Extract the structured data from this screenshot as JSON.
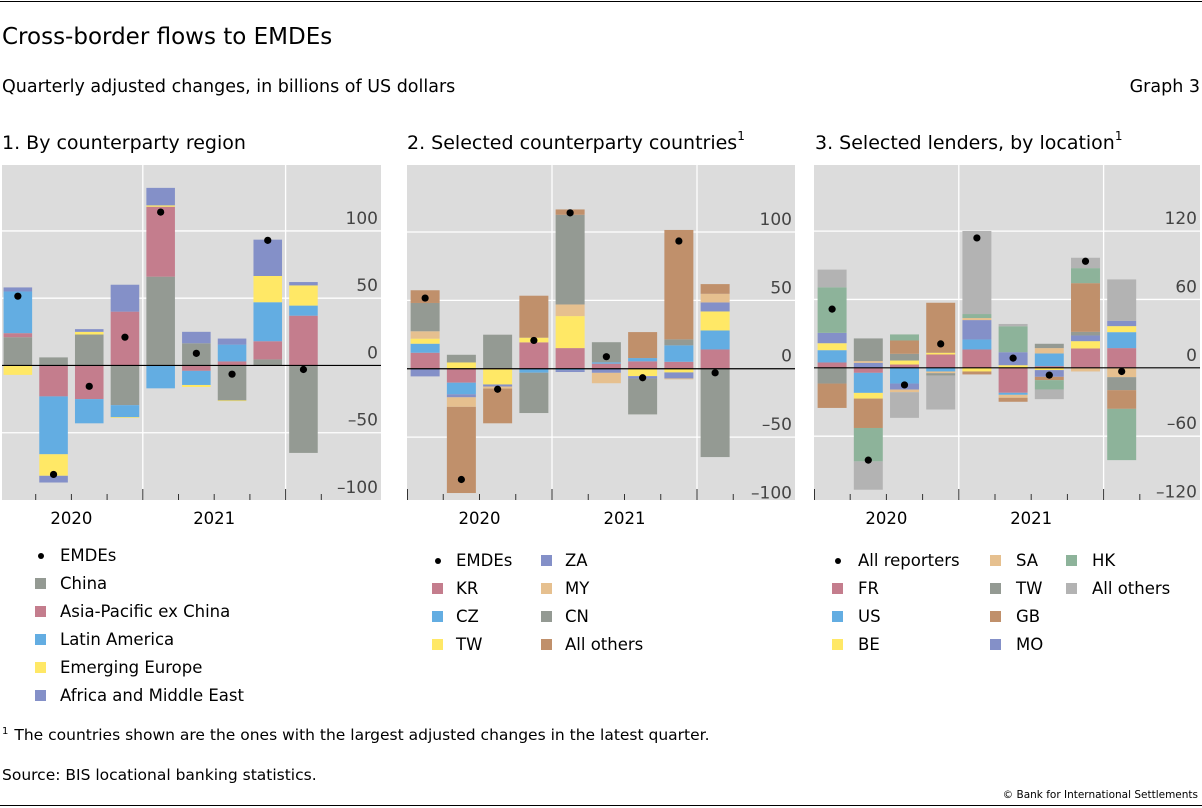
{
  "header": {
    "title": "Cross-border flows to EMDEs",
    "subtitle": "Quarterly adjusted changes, in billions of US dollars",
    "graph_label": "Graph 3"
  },
  "footer": {
    "footnote_marker": "1",
    "footnote": "The countries shown are the ones with the largest adjusted changes in the latest quarter.",
    "source": "Source: BIS locational banking statistics.",
    "copyright": "© Bank for International Settlements"
  },
  "colors": {
    "plot_background": "#dcdcdc",
    "gridline": "#ffffff",
    "zero_line": "#000000",
    "dot": "#000000"
  },
  "chart_data": [
    {
      "type": "bar",
      "stacked": true,
      "title": "1. By counterparty region",
      "title_sup": "",
      "categories": [
        "2020Q1",
        "2020Q2",
        "2020Q3",
        "2020Q4",
        "2021Q1",
        "2021Q2",
        "2021Q3",
        "2021Q4",
        "2022Q1"
      ],
      "x_tick_labels": [
        "2020",
        "2021"
      ],
      "ylim": [
        -100,
        149
      ],
      "yticks": [
        -100,
        -50,
        0,
        50,
        100
      ],
      "ytick_labels": [
        "–100",
        "–50",
        "0",
        "50",
        "100"
      ],
      "grid": true,
      "legend_position": "bottom",
      "dots": {
        "name": "EMDEs",
        "values": [
          51.5,
          -81,
          -15.5,
          21,
          114,
          9,
          -6.5,
          93,
          -3
        ]
      },
      "series": [
        {
          "name": "China",
          "color": "#949a93",
          "values": [
            21,
            6,
            23,
            -29.5,
            66,
            16.5,
            -26,
            4.5,
            -65
          ]
        },
        {
          "name": "Asia-Pacific ex China",
          "color": "#c47d8d",
          "values": [
            3,
            -23,
            -25,
            40,
            52,
            -4,
            3,
            13.5,
            37
          ]
        },
        {
          "name": "Latin America",
          "color": "#63ade2",
          "values": [
            31,
            -43,
            -18,
            -9,
            -17,
            -10.5,
            12.5,
            29,
            7.5
          ]
        },
        {
          "name": "Emerging Europe",
          "color": "#ffe866",
          "values": [
            -7,
            -16,
            2,
            -0.5,
            1,
            -1.5,
            -0.5,
            19.5,
            15
          ]
        },
        {
          "name": "Africa and Middle East",
          "color": "#8490c8",
          "values": [
            3,
            -5,
            2,
            20,
            13,
            8.5,
            4.5,
            27,
            2.5
          ]
        }
      ]
    },
    {
      "type": "bar",
      "stacked": true,
      "title": "2. Selected counterparty countries",
      "title_sup": "1",
      "categories": [
        "2020Q1",
        "2020Q2",
        "2020Q3",
        "2020Q4",
        "2021Q1",
        "2021Q2",
        "2021Q3",
        "2021Q4",
        "2022Q1"
      ],
      "x_tick_labels": [
        "2020",
        "2021"
      ],
      "ylim": [
        -96,
        149
      ],
      "yticks": [
        -100,
        -50,
        0,
        50,
        100
      ],
      "ytick_labels": [
        "–100",
        "–50",
        "0",
        "50",
        "100"
      ],
      "grid": true,
      "legend_position": "bottom",
      "dots": {
        "name": "EMDEs",
        "values": [
          51.7,
          -81,
          -15,
          20.7,
          114,
          8.8,
          -6.6,
          93.4,
          -3
        ]
      },
      "series": [
        {
          "name": "KR",
          "color": "#c47d8d",
          "values": [
            11.7,
            -10.2,
            0.5,
            19.3,
            15.1,
            3.7,
            5.4,
            5.1,
            14.1
          ]
        },
        {
          "name": "CZ",
          "color": "#63ade2",
          "values": [
            6.6,
            -8.5,
            0,
            -2.9,
            -1,
            1,
            2.4,
            12,
            13.9
          ]
        },
        {
          "name": "TW",
          "color": "#ffe866",
          "values": [
            3.7,
            4.6,
            -11.5,
            3.4,
            23.4,
            0,
            -5.4,
            -2.7,
            13.9
          ]
        },
        {
          "name": "ZA",
          "color": "#8490c8",
          "values": [
            -5.6,
            -2.2,
            -1.5,
            0,
            -1.4,
            -3,
            -1.7,
            -4.4,
            6.6
          ]
        },
        {
          "name": "MY",
          "color": "#e6c08f",
          "values": [
            5.4,
            -7,
            -1.5,
            0,
            8.5,
            -7.6,
            0,
            -0.7,
            6.3
          ]
        },
        {
          "name": "CN",
          "color": "#949a93",
          "values": [
            20.7,
            5.6,
            24.4,
            -29.5,
            65.6,
            14.7,
            -26.3,
            4.4,
            -64.6
          ]
        },
        {
          "name": "All others",
          "color": "#c0906b",
          "values": [
            9.3,
            -63,
            -25.4,
            30.7,
            3.9,
            0,
            19,
            80,
            7.1
          ]
        }
      ]
    },
    {
      "type": "bar",
      "stacked": true,
      "title": "3. Selected lenders, by location",
      "title_sup": "1",
      "categories": [
        "2020Q1",
        "2020Q2",
        "2020Q3",
        "2020Q4",
        "2021Q1",
        "2021Q2",
        "2021Q3",
        "2021Q4",
        "2022Q1"
      ],
      "x_tick_labels": [
        "2020",
        "2021"
      ],
      "ylim": [
        -116,
        178
      ],
      "yticks": [
        -120,
        -60,
        0,
        60,
        120
      ],
      "ytick_labels": [
        "–120",
        "–60",
        "0",
        "60",
        "120"
      ],
      "grid": true,
      "legend_position": "bottom",
      "dots": {
        "name": "All reporters",
        "values": [
          51.5,
          -81,
          -15,
          21,
          114,
          8.5,
          -6.4,
          93.5,
          -3.2
        ]
      },
      "series": [
        {
          "name": "FR",
          "color": "#c47d8d",
          "values": [
            4.7,
            -4.4,
            2.9,
            11.7,
            16.1,
            -21.9,
            1.5,
            17,
            17.3
          ]
        },
        {
          "name": "US",
          "color": "#63ade2",
          "values": [
            10.8,
            -17.6,
            -13.8,
            -3.2,
            8.8,
            -1.8,
            11.1,
            0,
            14
          ]
        },
        {
          "name": "BE",
          "color": "#ffe866",
          "values": [
            6.1,
            -5,
            3.5,
            1.5,
            -3.2,
            2.3,
            -2,
            6.4,
            5.3
          ]
        },
        {
          "name": "SA",
          "color": "#e6c08f",
          "values": [
            0,
            1.5,
            -2.3,
            -1.5,
            1.8,
            -2.6,
            4.7,
            -3.2,
            -8.2
          ]
        },
        {
          "name": "TW",
          "color": "#949a93",
          "values": [
            -13.8,
            19.9,
            5.9,
            -2,
            0,
            0,
            3.8,
            3.2,
            -11.4
          ]
        },
        {
          "name": "GB",
          "color": "#c0906b",
          "values": [
            -21.4,
            -25.8,
            11.7,
            43.9,
            -2.6,
            -3.5,
            -2.9,
            42.7,
            -16.4
          ]
        },
        {
          "name": "MO",
          "color": "#8490c8",
          "values": [
            9.1,
            4.4,
            -5.3,
            0,
            17,
            11.4,
            -5.9,
            5,
            4.7
          ]
        },
        {
          "name": "HK",
          "color": "#8db39a",
          "values": [
            40,
            -29.3,
            5.3,
            0,
            3.5,
            22.8,
            -8.2,
            13.2,
            -45
          ]
        },
        {
          "name": "All others",
          "color": "#b3b3b3",
          "values": [
            15.5,
            -24.9,
            -22.5,
            -29.9,
            72.9,
            2,
            -8.5,
            9.1,
            36.3
          ]
        }
      ]
    }
  ]
}
